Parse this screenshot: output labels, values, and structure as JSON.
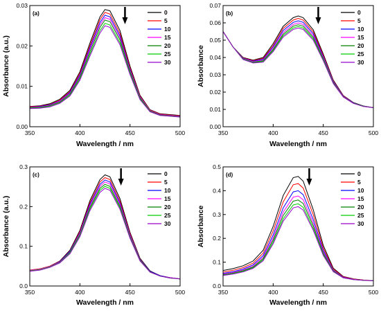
{
  "figure": {
    "legend_colors": [
      "#000000",
      "#ff0000",
      "#0000ff",
      "#ff00ff",
      "#008000",
      "#00cc00",
      "#9900cc"
    ]
  },
  "chart_data": [
    {
      "type": "line",
      "panel_label": "(a)",
      "xlabel": "Wavelength / nm",
      "ylabel": "Absorbance (a.u.)",
      "xlim": [
        350,
        500
      ],
      "ylim": [
        0,
        0.03
      ],
      "xticks": [
        "350",
        "400",
        "450",
        "500"
      ],
      "yticks": [
        "0.00",
        "0.01",
        "0.02",
        "0.03"
      ],
      "yticks_values": [
        0,
        0.01,
        0.02,
        0.03
      ],
      "x": [
        350,
        360,
        370,
        380,
        390,
        400,
        410,
        420,
        425,
        430,
        440,
        450,
        460,
        470,
        480,
        490,
        500
      ],
      "arrow": "down",
      "arrow_x": 445,
      "legend_position": "top-right",
      "series": [
        {
          "name": "0",
          "values": [
            0.005,
            0.0052,
            0.0057,
            0.0068,
            0.009,
            0.0136,
            0.0207,
            0.0272,
            0.029,
            0.0287,
            0.0238,
            0.015,
            0.0078,
            0.0042,
            0.0032,
            0.003,
            0.0028
          ]
        },
        {
          "name": "5",
          "values": [
            0.0049,
            0.0051,
            0.0055,
            0.0066,
            0.0087,
            0.0132,
            0.0201,
            0.0265,
            0.0283,
            0.0279,
            0.0231,
            0.0146,
            0.0076,
            0.0041,
            0.0031,
            0.0029,
            0.0027
          ]
        },
        {
          "name": "10",
          "values": [
            0.0048,
            0.005,
            0.0054,
            0.0064,
            0.0085,
            0.0128,
            0.0196,
            0.0258,
            0.0276,
            0.0272,
            0.0225,
            0.0142,
            0.0074,
            0.004,
            0.003,
            0.0028,
            0.0026
          ]
        },
        {
          "name": "15",
          "values": [
            0.0048,
            0.0049,
            0.0053,
            0.0063,
            0.0083,
            0.0125,
            0.0191,
            0.0252,
            0.027,
            0.0266,
            0.022,
            0.0139,
            0.0073,
            0.004,
            0.003,
            0.0028,
            0.0026
          ]
        },
        {
          "name": "20",
          "values": [
            0.0047,
            0.0048,
            0.0052,
            0.0061,
            0.0081,
            0.0122,
            0.0186,
            0.0246,
            0.0264,
            0.026,
            0.0215,
            0.0136,
            0.0071,
            0.0039,
            0.0029,
            0.0027,
            0.0025
          ]
        },
        {
          "name": "25",
          "values": [
            0.0046,
            0.0047,
            0.005,
            0.0059,
            0.0078,
            0.0118,
            0.018,
            0.0238,
            0.0256,
            0.0252,
            0.0208,
            0.0132,
            0.0069,
            0.0038,
            0.0028,
            0.0026,
            0.0024
          ]
        },
        {
          "name": "30",
          "values": [
            0.0045,
            0.0046,
            0.0049,
            0.0058,
            0.0076,
            0.0115,
            0.0175,
            0.0232,
            0.025,
            0.0246,
            0.0203,
            0.0129,
            0.0067,
            0.0037,
            0.0028,
            0.0026,
            0.0024
          ]
        }
      ]
    },
    {
      "type": "line",
      "panel_label": "(b)",
      "xlabel": "Wavelength / nm",
      "ylabel": "Absorbance",
      "xlim": [
        350,
        500
      ],
      "ylim": [
        0,
        0.07
      ],
      "xticks": [
        "350",
        "400",
        "450",
        "500"
      ],
      "yticks": [
        "0.00",
        "0.01",
        "0.02",
        "0.03",
        "0.04",
        "0.05",
        "0.06",
        "0.07"
      ],
      "yticks_values": [
        0,
        0.01,
        0.02,
        0.03,
        0.04,
        0.05,
        0.06,
        0.07
      ],
      "x": [
        350,
        360,
        370,
        380,
        390,
        400,
        410,
        420,
        425,
        430,
        440,
        450,
        460,
        470,
        480,
        490,
        500
      ],
      "arrow": "down",
      "arrow_x": 445,
      "legend_position": "top-right",
      "series": [
        {
          "name": "0",
          "values": [
            0.055,
            0.046,
            0.04,
            0.0385,
            0.04,
            0.048,
            0.058,
            0.063,
            0.064,
            0.063,
            0.056,
            0.042,
            0.027,
            0.018,
            0.014,
            0.012,
            0.011
          ]
        },
        {
          "name": "5",
          "values": [
            0.055,
            0.046,
            0.0398,
            0.0382,
            0.0395,
            0.047,
            0.0568,
            0.0616,
            0.0626,
            0.0616,
            0.0548,
            0.0413,
            0.0266,
            0.0178,
            0.0139,
            0.0119,
            0.011
          ]
        },
        {
          "name": "10",
          "values": [
            0.055,
            0.046,
            0.0396,
            0.0379,
            0.039,
            0.0462,
            0.0556,
            0.0603,
            0.0612,
            0.0603,
            0.0537,
            0.0405,
            0.0262,
            0.0176,
            0.0138,
            0.0119,
            0.011
          ]
        },
        {
          "name": "15",
          "values": [
            0.055,
            0.046,
            0.0394,
            0.0376,
            0.0385,
            0.0454,
            0.0545,
            0.0591,
            0.06,
            0.0591,
            0.0526,
            0.0398,
            0.0258,
            0.0175,
            0.0137,
            0.0118,
            0.011
          ]
        },
        {
          "name": "20",
          "values": [
            0.055,
            0.046,
            0.0392,
            0.0373,
            0.0381,
            0.0447,
            0.0535,
            0.0581,
            0.0589,
            0.0581,
            0.0517,
            0.0392,
            0.0255,
            0.0173,
            0.0136,
            0.0118,
            0.011
          ]
        },
        {
          "name": "25",
          "values": [
            0.055,
            0.046,
            0.039,
            0.037,
            0.0377,
            0.044,
            0.0526,
            0.0571,
            0.0579,
            0.0571,
            0.0508,
            0.0386,
            0.0252,
            0.0172,
            0.0136,
            0.0118,
            0.011
          ]
        },
        {
          "name": "30",
          "values": [
            0.055,
            0.046,
            0.0388,
            0.0368,
            0.0373,
            0.0434,
            0.0518,
            0.0562,
            0.057,
            0.0562,
            0.05,
            0.0381,
            0.0249,
            0.0171,
            0.0135,
            0.0117,
            0.011
          ]
        }
      ]
    },
    {
      "type": "line",
      "panel_label": "(c)",
      "xlabel": "Wavelength / nm",
      "ylabel": "Absorbance (a.u.)",
      "xlim": [
        350,
        500
      ],
      "ylim": [
        0,
        0.3
      ],
      "xticks": [
        "350",
        "400",
        "450",
        "500"
      ],
      "yticks": [
        "0.0",
        "0.1",
        "0.2",
        "0.3"
      ],
      "yticks_values": [
        0,
        0.1,
        0.2,
        0.3
      ],
      "x": [
        350,
        360,
        370,
        380,
        390,
        400,
        410,
        420,
        425,
        430,
        440,
        450,
        460,
        470,
        480,
        490,
        500
      ],
      "arrow": "down",
      "arrow_x": 441,
      "legend_position": "top-right",
      "series": [
        {
          "name": "0",
          "values": [
            0.04,
            0.043,
            0.05,
            0.063,
            0.09,
            0.14,
            0.215,
            0.268,
            0.28,
            0.275,
            0.22,
            0.135,
            0.07,
            0.038,
            0.026,
            0.021,
            0.018
          ]
        },
        {
          "name": "5",
          "values": [
            0.04,
            0.043,
            0.05,
            0.062,
            0.088,
            0.137,
            0.21,
            0.262,
            0.273,
            0.268,
            0.214,
            0.132,
            0.068,
            0.037,
            0.026,
            0.021,
            0.018
          ]
        },
        {
          "name": "10",
          "values": [
            0.039,
            0.042,
            0.049,
            0.061,
            0.087,
            0.134,
            0.206,
            0.256,
            0.267,
            0.262,
            0.209,
            0.129,
            0.067,
            0.037,
            0.026,
            0.021,
            0.018
          ]
        },
        {
          "name": "15",
          "values": [
            0.039,
            0.042,
            0.049,
            0.06,
            0.085,
            0.132,
            0.202,
            0.251,
            0.262,
            0.257,
            0.205,
            0.127,
            0.066,
            0.036,
            0.025,
            0.021,
            0.018
          ]
        },
        {
          "name": "20",
          "values": [
            0.038,
            0.041,
            0.048,
            0.059,
            0.084,
            0.129,
            0.198,
            0.246,
            0.256,
            0.251,
            0.201,
            0.124,
            0.065,
            0.036,
            0.025,
            0.02,
            0.018
          ]
        },
        {
          "name": "25",
          "values": [
            0.038,
            0.041,
            0.048,
            0.059,
            0.083,
            0.127,
            0.194,
            0.241,
            0.251,
            0.246,
            0.197,
            0.122,
            0.064,
            0.035,
            0.025,
            0.02,
            0.018
          ]
        },
        {
          "name": "30",
          "values": [
            0.037,
            0.04,
            0.047,
            0.058,
            0.081,
            0.124,
            0.19,
            0.236,
            0.246,
            0.241,
            0.193,
            0.12,
            0.063,
            0.035,
            0.025,
            0.02,
            0.018
          ]
        }
      ]
    },
    {
      "type": "line",
      "panel_label": "(d)",
      "xlabel": "Wavelength / nm",
      "ylabel": "Absorbance",
      "xlim": [
        350,
        500
      ],
      "ylim": [
        0,
        0.5
      ],
      "xticks": [
        "350",
        "400",
        "450",
        "500"
      ],
      "yticks": [
        "0.0",
        "0.1",
        "0.2",
        "0.3",
        "0.4",
        "0.5"
      ],
      "yticks_values": [
        0,
        0.1,
        0.2,
        0.3,
        0.4,
        0.5
      ],
      "x": [
        350,
        360,
        370,
        380,
        390,
        400,
        410,
        420,
        425,
        430,
        440,
        450,
        460,
        470,
        480,
        490,
        500
      ],
      "arrow": "down",
      "arrow_x": 436,
      "legend_position": "top-right",
      "series": [
        {
          "name": "0",
          "values": [
            0.065,
            0.073,
            0.085,
            0.105,
            0.15,
            0.25,
            0.38,
            0.455,
            0.46,
            0.44,
            0.32,
            0.17,
            0.075,
            0.04,
            0.03,
            0.025,
            0.022
          ]
        },
        {
          "name": "5",
          "values": [
            0.058,
            0.066,
            0.077,
            0.096,
            0.138,
            0.231,
            0.353,
            0.425,
            0.43,
            0.411,
            0.299,
            0.16,
            0.071,
            0.039,
            0.029,
            0.025,
            0.022
          ]
        },
        {
          "name": "10",
          "values": [
            0.053,
            0.06,
            0.071,
            0.089,
            0.128,
            0.214,
            0.328,
            0.395,
            0.4,
            0.383,
            0.279,
            0.15,
            0.067,
            0.037,
            0.028,
            0.024,
            0.022
          ]
        },
        {
          "name": "15",
          "values": [
            0.05,
            0.057,
            0.067,
            0.084,
            0.121,
            0.202,
            0.31,
            0.373,
            0.378,
            0.362,
            0.264,
            0.143,
            0.065,
            0.036,
            0.028,
            0.024,
            0.022
          ]
        },
        {
          "name": "20",
          "values": [
            0.047,
            0.054,
            0.064,
            0.08,
            0.115,
            0.193,
            0.296,
            0.356,
            0.361,
            0.346,
            0.253,
            0.137,
            0.063,
            0.035,
            0.027,
            0.024,
            0.022
          ]
        },
        {
          "name": "25",
          "values": [
            0.045,
            0.052,
            0.061,
            0.077,
            0.11,
            0.184,
            0.282,
            0.34,
            0.345,
            0.33,
            0.242,
            0.132,
            0.061,
            0.034,
            0.027,
            0.024,
            0.022
          ]
        },
        {
          "name": "30",
          "values": [
            0.044,
            0.05,
            0.059,
            0.074,
            0.106,
            0.177,
            0.272,
            0.328,
            0.333,
            0.319,
            0.234,
            0.128,
            0.06,
            0.034,
            0.027,
            0.024,
            0.022
          ]
        }
      ]
    }
  ]
}
